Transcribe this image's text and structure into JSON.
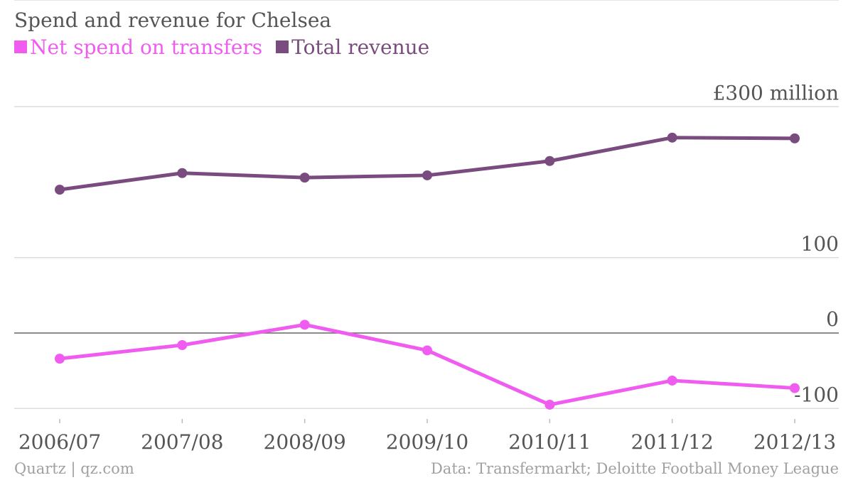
{
  "chart_data": {
    "type": "line",
    "title": "Spend and revenue for Chelsea",
    "categories": [
      "2006/07",
      "2007/08",
      "2008/09",
      "2009/10",
      "2010/11",
      "2011/12",
      "2012/13"
    ],
    "series": [
      {
        "name": "Net spend on transfers",
        "color": "#f05cf0",
        "values": [
          -34,
          -16,
          11,
          -23,
          -95,
          -63,
          -73
        ]
      },
      {
        "name": "Total revenue",
        "color": "#7a4b7e",
        "values": [
          190,
          212,
          206,
          209,
          228,
          259,
          258
        ]
      }
    ],
    "y_ticks": [
      {
        "value": 300,
        "label": "£300 million"
      },
      {
        "value": 100,
        "label": "100"
      },
      {
        "value": 0,
        "label": "0"
      },
      {
        "value": -100,
        "label": "-100"
      }
    ],
    "ylim": [
      -100,
      300
    ],
    "grid": true,
    "legend": "top-left"
  },
  "footer": {
    "source_left": "Quartz | qz.com",
    "source_right": "Data: Transfermarkt; Deloitte Football Money League"
  }
}
